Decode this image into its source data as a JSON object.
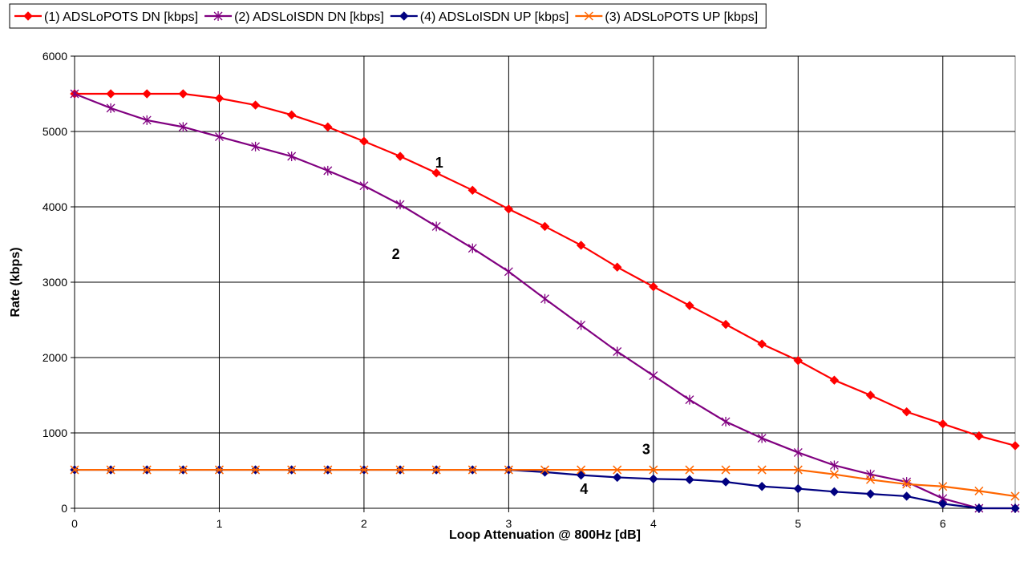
{
  "chart_data": {
    "type": "line",
    "title": "",
    "xlabel": "Loop Attenuation @ 800Hz [dB]",
    "ylabel": "Rate (kbps)",
    "xlim": [
      0,
      6.5
    ],
    "ylim": [
      0,
      6000
    ],
    "xticks": [
      0,
      1,
      2,
      3,
      4,
      5,
      6
    ],
    "yticks": [
      0,
      1000,
      2000,
      3000,
      4000,
      5000,
      6000
    ],
    "grid": true,
    "legend_position": "top",
    "x": [
      0,
      0.25,
      0.5,
      0.75,
      1,
      1.25,
      1.5,
      1.75,
      2,
      2.25,
      2.5,
      2.75,
      3,
      3.25,
      3.5,
      3.75,
      4,
      4.25,
      4.5,
      4.75,
      5,
      5.25,
      5.5,
      5.75,
      6,
      6.25,
      6.5
    ],
    "series": [
      {
        "name": "(1) ADSLoPOTS DN [kbps]",
        "color": "#ff0000",
        "marker": "diamond",
        "values": [
          5500,
          5500,
          5500,
          5500,
          5440,
          5350,
          5220,
          5060,
          4870,
          4670,
          4450,
          4220,
          3970,
          3740,
          3490,
          3200,
          2940,
          2690,
          2440,
          2180,
          1960,
          1700,
          1500,
          1280,
          1120,
          960,
          830
        ]
      },
      {
        "name": "(2) ADSLoISDN DN [kbps]",
        "color": "#800080",
        "marker": "asterisk",
        "values": [
          5500,
          5310,
          5150,
          5060,
          4930,
          4800,
          4670,
          4480,
          4280,
          4030,
          3740,
          3450,
          3140,
          2780,
          2430,
          2080,
          1760,
          1440,
          1150,
          930,
          740,
          570,
          450,
          350,
          130,
          0,
          0
        ]
      },
      {
        "name": "(4) ADSLoISDN UP [kbps]",
        "color": "#000080",
        "marker": "diamond",
        "values": [
          510,
          510,
          510,
          510,
          510,
          510,
          510,
          510,
          510,
          510,
          510,
          510,
          510,
          480,
          440,
          410,
          390,
          380,
          350,
          290,
          260,
          220,
          190,
          160,
          60,
          0,
          0
        ]
      },
      {
        "name": "(3) ADSLoPOTS UP [kbps]",
        "color": "#ff6600",
        "marker": "x",
        "values": [
          510,
          510,
          510,
          510,
          510,
          510,
          510,
          510,
          510,
          510,
          510,
          510,
          510,
          510,
          510,
          510,
          510,
          510,
          510,
          510,
          510,
          450,
          380,
          320,
          290,
          230,
          160
        ]
      }
    ],
    "annotations": [
      {
        "text": "1",
        "x": 2.52,
        "y": 4520
      },
      {
        "text": "2",
        "x": 2.22,
        "y": 3310
      },
      {
        "text": "3",
        "x": 3.95,
        "y": 720
      },
      {
        "text": "4",
        "x": 3.52,
        "y": 190
      }
    ]
  }
}
